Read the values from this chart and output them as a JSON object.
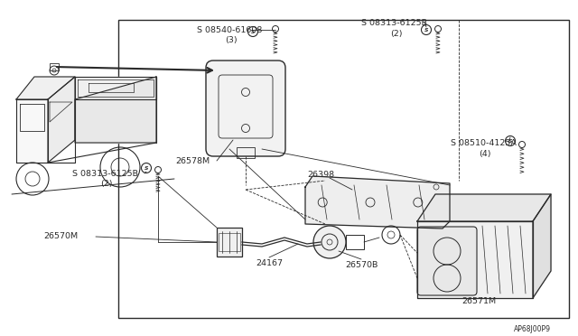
{
  "bg_color": "#ffffff",
  "line_color": "#2a2a2a",
  "text_color": "#2a2a2a",
  "diagram_code": "AP68J00P9",
  "figsize": [
    6.4,
    3.72
  ],
  "dpi": 100,
  "border": [
    0.205,
    0.06,
    0.985,
    0.945
  ],
  "label_fs": 6.8,
  "small_fs": 6.0,
  "tiny_fs": 5.5
}
